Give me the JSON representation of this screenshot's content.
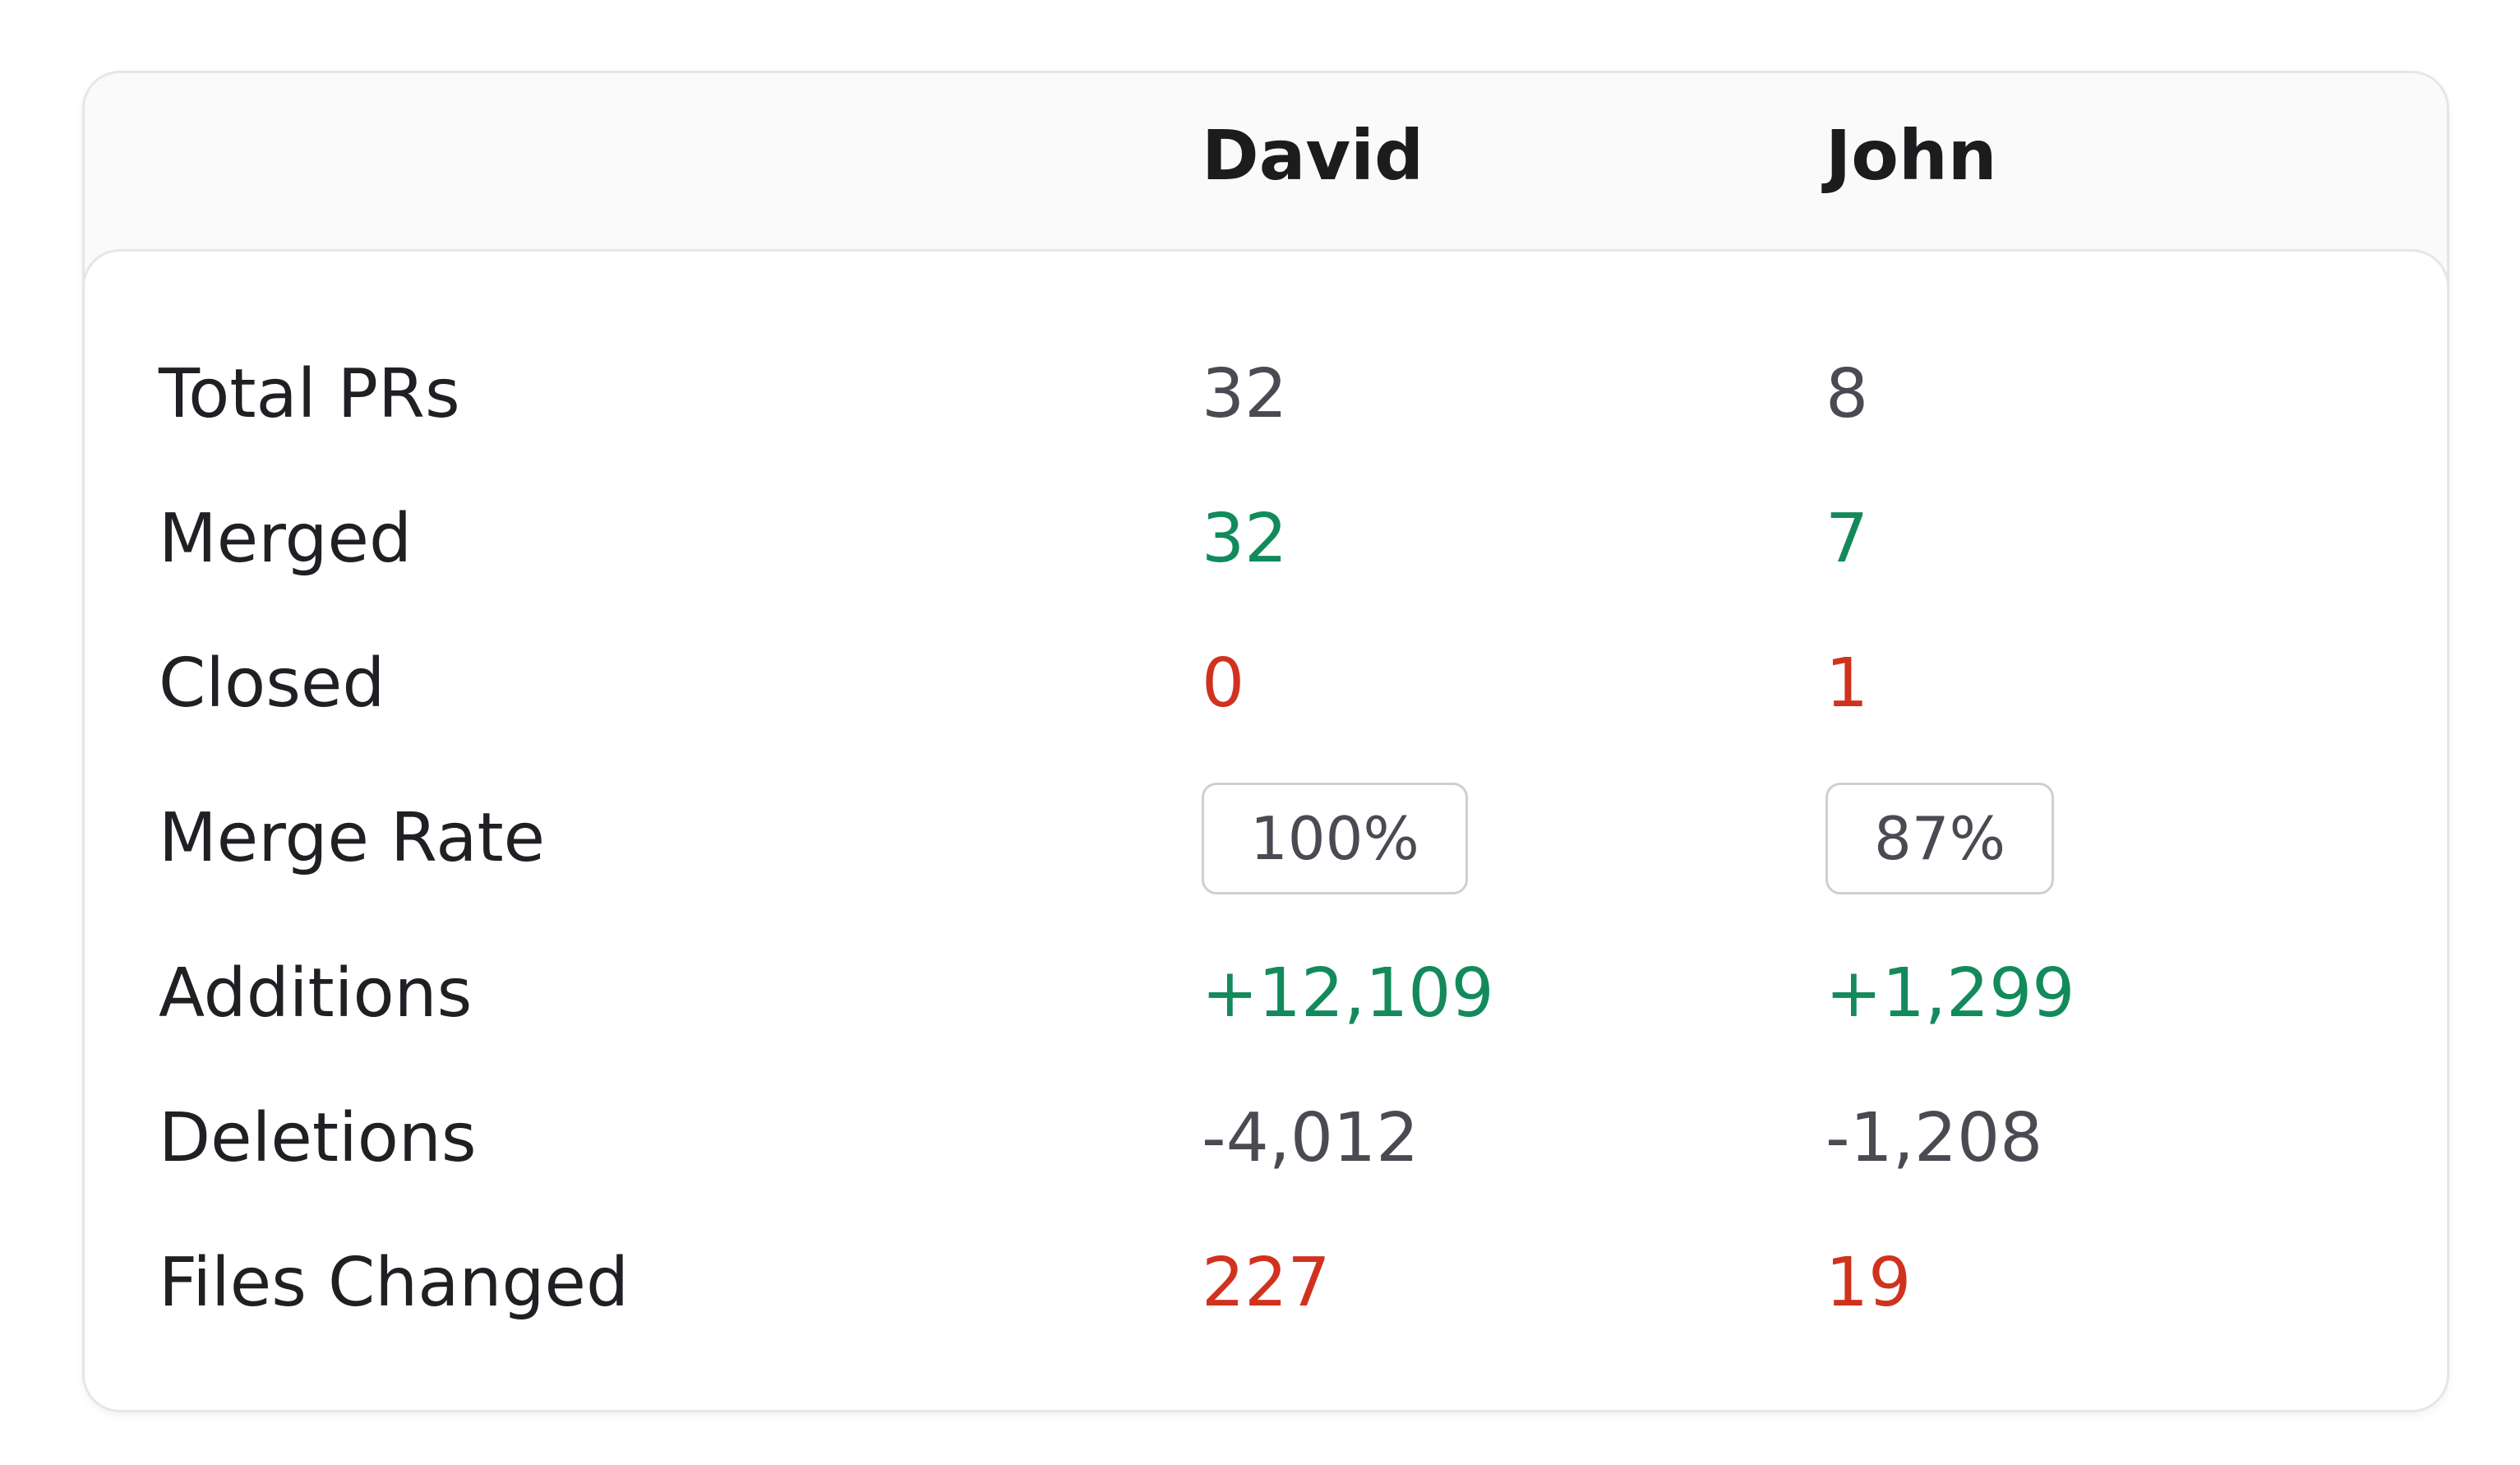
{
  "header": {
    "columns": [
      "David",
      "John"
    ]
  },
  "rows": [
    {
      "label": "Total PRs",
      "david": "32",
      "john": "8",
      "tone": "neutral"
    },
    {
      "label": "Merged",
      "david": "32",
      "john": "7",
      "tone": "green"
    },
    {
      "label": "Closed",
      "david": "0",
      "john": "1",
      "tone": "red"
    },
    {
      "label": "Merge Rate",
      "david": "100%",
      "john": "87%",
      "tone": "pill"
    },
    {
      "label": "Additions",
      "david": "+12,109",
      "john": "+1,299",
      "tone": "green"
    },
    {
      "label": "Deletions",
      "david": "-4,012",
      "john": "-1,208",
      "tone": "neutral"
    },
    {
      "label": "Files Changed",
      "david": "227",
      "john": "19",
      "tone": "red"
    }
  ],
  "colors": {
    "positive": "#138a5c",
    "negative": "#d0321e",
    "neutral": "#4a4a52"
  }
}
